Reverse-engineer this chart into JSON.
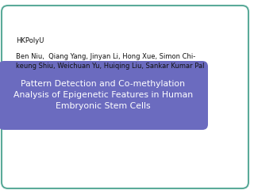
{
  "title_line1": "Pattern Detection and Co-methylation",
  "title_line2": "Analysis of Epigenetic Features in Human",
  "title_line3": "Embryonic Stem Cells",
  "authors_line1": "Ben Niu,  Qiang Yang, Jinyan Li, Hong Xue, Simon Chi-",
  "authors_line2": "keung Shiu, Weichuan Yu, Huiqing Liu, Sankar Kumar Pal",
  "institution": "HKPolyU",
  "title_bg_color": "#6b6bbf",
  "title_text_color": "#ffffff",
  "slide_bg_color": "#ffffff",
  "border_color": "#5aaa99",
  "title_fontsize": 7.8,
  "author_fontsize": 6.0,
  "inst_fontsize": 6.0
}
